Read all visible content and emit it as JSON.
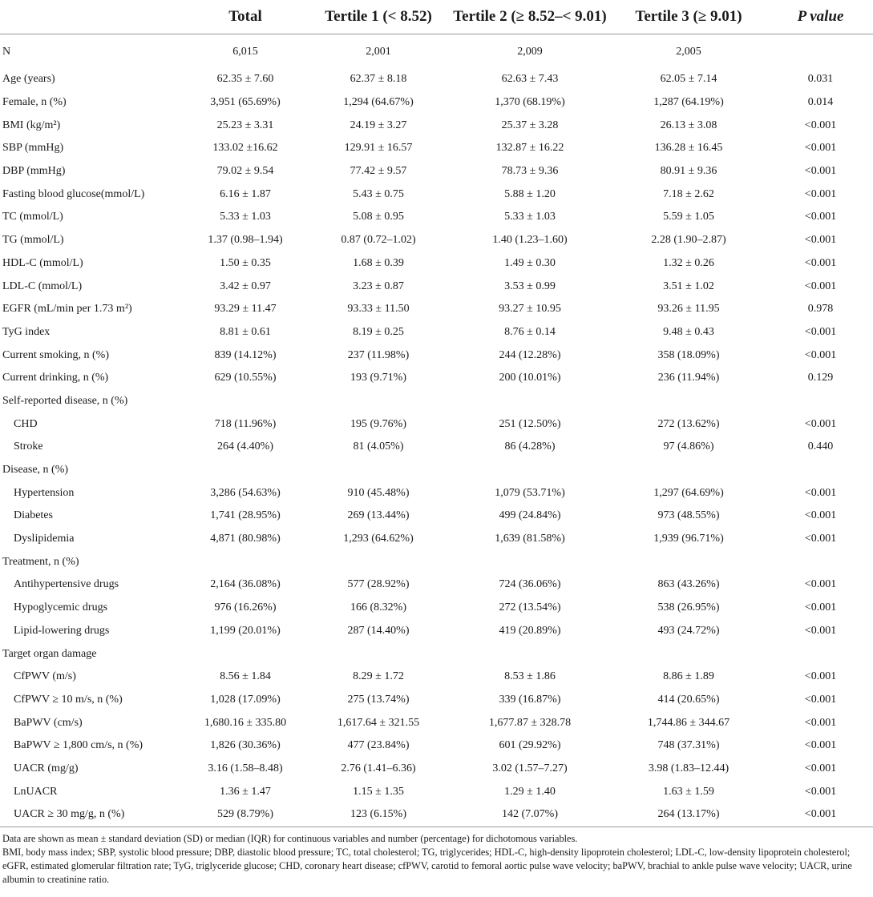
{
  "table": {
    "headers": [
      "",
      "Total",
      "Tertile 1 (< 8.52)",
      "Tertile 2 (≥ 8.52–< 9.01)",
      "Tertile 3 (≥ 9.01)",
      "P value"
    ],
    "rows": [
      {
        "label": "N",
        "indent": false,
        "total": "6,015",
        "t1": "2,001",
        "t2": "2,009",
        "t3": "2,005",
        "p": ""
      },
      {
        "label": "Age (years)",
        "indent": false,
        "total": "62.35 ± 7.60",
        "t1": "62.37 ± 8.18",
        "t2": "62.63 ± 7.43",
        "t3": "62.05 ± 7.14",
        "p": "0.031"
      },
      {
        "label": "Female, n (%)",
        "indent": false,
        "total": "3,951 (65.69%)",
        "t1": "1,294 (64.67%)",
        "t2": "1,370 (68.19%)",
        "t3": "1,287 (64.19%)",
        "p": "0.014"
      },
      {
        "label": "BMI (kg/m²)",
        "indent": false,
        "total": "25.23 ± 3.31",
        "t1": "24.19 ± 3.27",
        "t2": "25.37 ± 3.28",
        "t3": "26.13 ± 3.08",
        "p": "<0.001"
      },
      {
        "label": "SBP (mmHg)",
        "indent": false,
        "total": "133.02 ±16.62",
        "t1": "129.91 ± 16.57",
        "t2": "132.87 ± 16.22",
        "t3": "136.28 ± 16.45",
        "p": "<0.001"
      },
      {
        "label": "DBP (mmHg)",
        "indent": false,
        "total": "79.02 ± 9.54",
        "t1": "77.42 ± 9.57",
        "t2": "78.73 ± 9.36",
        "t3": "80.91 ± 9.36",
        "p": "<0.001"
      },
      {
        "label": "Fasting blood glucose(mmol/L)",
        "indent": false,
        "total": "6.16 ± 1.87",
        "t1": "5.43 ± 0.75",
        "t2": "5.88 ± 1.20",
        "t3": "7.18 ± 2.62",
        "p": "<0.001"
      },
      {
        "label": "TC (mmol/L)",
        "indent": false,
        "total": "5.33 ± 1.03",
        "t1": "5.08 ± 0.95",
        "t2": "5.33 ± 1.03",
        "t3": "5.59 ± 1.05",
        "p": "<0.001"
      },
      {
        "label": "TG (mmol/L)",
        "indent": false,
        "total": "1.37 (0.98–1.94)",
        "t1": "0.87 (0.72–1.02)",
        "t2": "1.40 (1.23–1.60)",
        "t3": "2.28 (1.90–2.87)",
        "p": "<0.001"
      },
      {
        "label": "HDL-C (mmol/L)",
        "indent": false,
        "total": "1.50 ± 0.35",
        "t1": "1.68 ± 0.39",
        "t2": "1.49 ± 0.30",
        "t3": "1.32 ± 0.26",
        "p": "<0.001"
      },
      {
        "label": "LDL-C (mmol/L)",
        "indent": false,
        "total": "3.42 ± 0.97",
        "t1": "3.23 ± 0.87",
        "t2": "3.53 ± 0.99",
        "t3": "3.51 ± 1.02",
        "p": "<0.001"
      },
      {
        "label": "EGFR (mL/min per 1.73 m²)",
        "indent": false,
        "total": "93.29 ± 11.47",
        "t1": "93.33 ± 11.50",
        "t2": "93.27 ± 10.95",
        "t3": "93.26 ± 11.95",
        "p": "0.978"
      },
      {
        "label": "TyG index",
        "indent": false,
        "total": "8.81 ± 0.61",
        "t1": "8.19 ± 0.25",
        "t2": "8.76 ± 0.14",
        "t3": "9.48 ± 0.43",
        "p": "<0.001"
      },
      {
        "label": "Current smoking, n (%)",
        "indent": false,
        "total": "839 (14.12%)",
        "t1": "237 (11.98%)",
        "t2": "244 (12.28%)",
        "t3": "358 (18.09%)",
        "p": "<0.001"
      },
      {
        "label": "Current drinking, n (%)",
        "indent": false,
        "total": "629 (10.55%)",
        "t1": "193 (9.71%)",
        "t2": "200 (10.01%)",
        "t3": "236 (11.94%)",
        "p": "0.129"
      },
      {
        "label": "Self-reported disease, n (%)",
        "indent": false,
        "total": "",
        "t1": "",
        "t2": "",
        "t3": "",
        "p": ""
      },
      {
        "label": "CHD",
        "indent": true,
        "total": "718 (11.96%)",
        "t1": "195 (9.76%)",
        "t2": "251 (12.50%)",
        "t3": "272 (13.62%)",
        "p": "<0.001"
      },
      {
        "label": "Stroke",
        "indent": true,
        "total": "264 (4.40%)",
        "t1": "81 (4.05%)",
        "t2": "86 (4.28%)",
        "t3": "97 (4.86%)",
        "p": "0.440"
      },
      {
        "label": "Disease, n (%)",
        "indent": false,
        "total": "",
        "t1": "",
        "t2": "",
        "t3": "",
        "p": ""
      },
      {
        "label": "Hypertension",
        "indent": true,
        "total": "3,286 (54.63%)",
        "t1": "910 (45.48%)",
        "t2": "1,079 (53.71%)",
        "t3": "1,297 (64.69%)",
        "p": "<0.001"
      },
      {
        "label": "Diabetes",
        "indent": true,
        "total": "1,741 (28.95%)",
        "t1": "269 (13.44%)",
        "t2": "499 (24.84%)",
        "t3": "973 (48.55%)",
        "p": "<0.001"
      },
      {
        "label": "Dyslipidemia",
        "indent": true,
        "total": "4,871 (80.98%)",
        "t1": "1,293 (64.62%)",
        "t2": "1,639 (81.58%)",
        "t3": "1,939 (96.71%)",
        "p": "<0.001"
      },
      {
        "label": "Treatment, n (%)",
        "indent": false,
        "total": "",
        "t1": "",
        "t2": "",
        "t3": "",
        "p": ""
      },
      {
        "label": "Antihypertensive drugs",
        "indent": true,
        "total": "2,164 (36.08%)",
        "t1": "577 (28.92%)",
        "t2": "724 (36.06%)",
        "t3": "863 (43.26%)",
        "p": "<0.001"
      },
      {
        "label": "Hypoglycemic drugs",
        "indent": true,
        "total": "976 (16.26%)",
        "t1": "166 (8.32%)",
        "t2": "272 (13.54%)",
        "t3": "538 (26.95%)",
        "p": "<0.001"
      },
      {
        "label": "Lipid-lowering drugs",
        "indent": true,
        "total": "1,199 (20.01%)",
        "t1": "287 (14.40%)",
        "t2": "419 (20.89%)",
        "t3": "493 (24.72%)",
        "p": "<0.001"
      },
      {
        "label": "Target organ damage",
        "indent": false,
        "total": "",
        "t1": "",
        "t2": "",
        "t3": "",
        "p": ""
      },
      {
        "label": "CfPWV (m/s)",
        "indent": true,
        "total": "8.56 ± 1.84",
        "t1": "8.29 ± 1.72",
        "t2": "8.53 ± 1.86",
        "t3": "8.86 ± 1.89",
        "p": "<0.001"
      },
      {
        "label": "CfPWV ≥ 10 m/s, n (%)",
        "indent": true,
        "total": "1,028 (17.09%)",
        "t1": "275 (13.74%)",
        "t2": "339 (16.87%)",
        "t3": "414 (20.65%)",
        "p": "<0.001"
      },
      {
        "label": "BaPWV (cm/s)",
        "indent": true,
        "total": "1,680.16 ± 335.80",
        "t1": "1,617.64 ± 321.55",
        "t2": "1,677.87 ± 328.78",
        "t3": "1,744.86 ± 344.67",
        "p": "<0.001"
      },
      {
        "label": "BaPWV ≥ 1,800 cm/s, n (%)",
        "indent": true,
        "total": "1,826 (30.36%)",
        "t1": "477 (23.84%)",
        "t2": "601 (29.92%)",
        "t3": "748 (37.31%)",
        "p": "<0.001"
      },
      {
        "label": "UACR (mg/g)",
        "indent": true,
        "total": "3.16 (1.58–8.48)",
        "t1": "2.76 (1.41–6.36)",
        "t2": "3.02 (1.57–7.27)",
        "t3": "3.98 (1.83–12.44)",
        "p": "<0.001"
      },
      {
        "label": "LnUACR",
        "indent": true,
        "total": "1.36 ± 1.47",
        "t1": "1.15 ± 1.35",
        "t2": "1.29 ± 1.40",
        "t3": "1.63 ± 1.59",
        "p": "<0.001"
      },
      {
        "label": "UACR ≥ 30 mg/g, n (%)",
        "indent": true,
        "total": "529 (8.79%)",
        "t1": "123 (6.15%)",
        "t2": "142 (7.07%)",
        "t3": "264 (13.17%)",
        "p": "<0.001"
      }
    ]
  },
  "notes": {
    "line1": "Data are shown as mean ± standard deviation (SD) or median (IQR) for continuous variables and number (percentage) for dichotomous variables.",
    "line2": "BMI, body mass index; SBP, systolic blood pressure; DBP, diastolic blood pressure; TC, total cholesterol; TG, triglycerides; HDL-C, high-density lipoprotein cholesterol; LDL-C, low-density lipoprotein cholesterol; eGFR, estimated glomerular filtration rate; TyG, triglyceride glucose; CHD, coronary heart disease; cfPWV, carotid to femoral aortic pulse wave velocity; baPWV, brachial to ankle pulse wave velocity; UACR, urine albumin to creatinine ratio."
  }
}
